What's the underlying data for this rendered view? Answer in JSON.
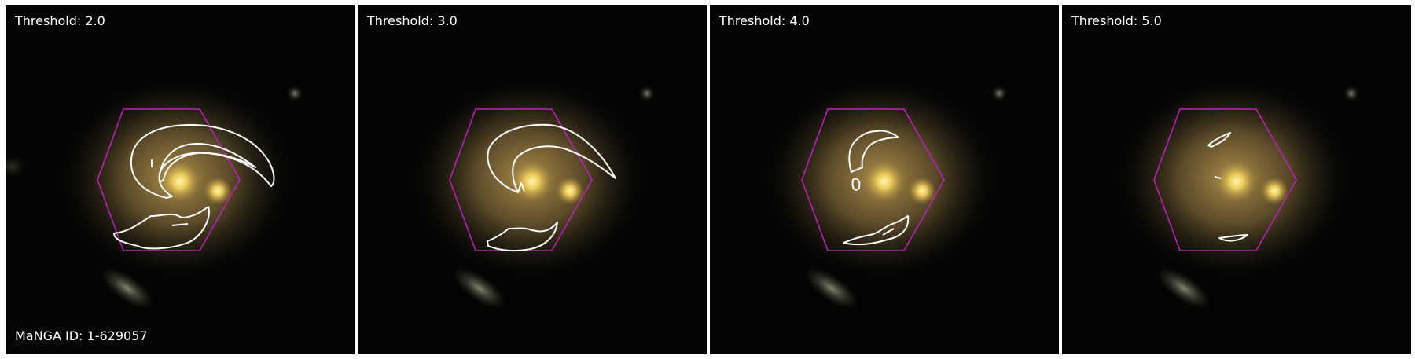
{
  "panels": [
    {
      "threshold_label": "Threshold: 2.0"
    },
    {
      "threshold_label": "Threshold: 3.0"
    },
    {
      "threshold_label": "Threshold: 4.0"
    },
    {
      "threshold_label": "Threshold: 5.0"
    }
  ],
  "manga_id_label": "MaNGA ID: 1-629057",
  "colors": {
    "background": "#050403",
    "galaxy_core": "#f3d86a",
    "galaxy_halo": "#a7884b",
    "hexagon": "#c020c0",
    "contour": "#ffffff",
    "text": "#ffffff"
  }
}
